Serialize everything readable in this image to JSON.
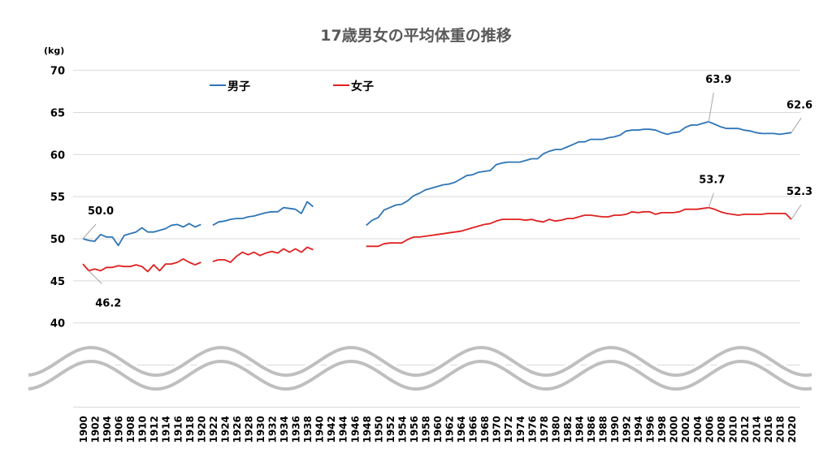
{
  "chart_data": {
    "type": "line",
    "title": "17歳男女の平均体重の推移",
    "ylabel": "(kg)",
    "ylim": [
      40,
      70
    ],
    "yticks": [
      40,
      45,
      50,
      55,
      60,
      65,
      70
    ],
    "xlim": [
      1900,
      2020
    ],
    "xtick_step": 2,
    "axis_break": true,
    "grid": true,
    "legend_position": "top-left",
    "series": [
      {
        "name": "男子",
        "color": "#2E75B6",
        "segments": [
          {
            "start": 1900,
            "values": [
              50.0,
              49.8,
              49.7,
              50.5,
              50.2,
              50.2,
              49.2,
              50.4,
              50.6,
              50.8,
              51.3,
              50.8,
              50.8,
              51.0,
              51.2,
              51.6,
              51.7,
              51.4,
              51.8,
              51.4,
              51.7
            ]
          },
          {
            "start": 1922,
            "values": [
              51.6,
              52.0,
              52.1,
              52.3,
              52.4,
              52.4,
              52.6,
              52.7,
              52.9,
              53.1,
              53.2,
              53.2,
              53.7,
              53.6,
              53.5,
              53.0,
              54.4,
              53.8
            ]
          },
          {
            "start": 1948,
            "values": [
              51.6,
              52.2,
              52.5,
              53.4,
              53.7,
              54.0,
              54.1,
              54.5,
              55.1,
              55.4,
              55.8,
              56.0,
              56.2,
              56.4,
              56.5,
              56.7,
              57.1,
              57.5,
              57.6,
              57.9,
              58.0,
              58.1,
              58.8,
              59.0,
              59.1,
              59.1,
              59.1,
              59.3,
              59.5,
              59.5,
              60.1,
              60.4,
              60.6,
              60.6,
              60.9,
              61.2,
              61.5,
              61.5,
              61.8,
              61.8,
              61.8,
              62.0,
              62.1,
              62.3,
              62.8,
              62.9,
              62.9,
              63.0,
              63.0,
              62.9,
              62.6,
              62.4,
              62.6,
              62.7,
              63.2,
              63.5,
              63.5,
              63.7,
              63.9,
              63.6,
              63.3,
              63.1,
              63.1,
              63.1,
              62.9,
              62.8,
              62.6,
              62.5,
              62.5,
              62.5,
              62.4,
              62.5,
              62.6
            ]
          }
        ]
      },
      {
        "name": "女子",
        "color": "#E02020",
        "segments": [
          {
            "start": 1900,
            "values": [
              47.0,
              46.2,
              46.4,
              46.2,
              46.6,
              46.6,
              46.8,
              46.7,
              46.7,
              46.9,
              46.7,
              46.1,
              46.9,
              46.2,
              47.0,
              47.0,
              47.2,
              47.6,
              47.2,
              46.9,
              47.2
            ]
          },
          {
            "start": 1922,
            "values": [
              47.3,
              47.5,
              47.5,
              47.2,
              47.9,
              48.4,
              48.1,
              48.4,
              48.0,
              48.3,
              48.5,
              48.3,
              48.8,
              48.4,
              48.8,
              48.4,
              49.0,
              48.7
            ]
          },
          {
            "start": 1948,
            "values": [
              49.1,
              49.1,
              49.1,
              49.4,
              49.5,
              49.5,
              49.5,
              49.9,
              50.2,
              50.2,
              50.3,
              50.4,
              50.5,
              50.6,
              50.7,
              50.8,
              50.9,
              51.1,
              51.3,
              51.5,
              51.7,
              51.8,
              52.1,
              52.3,
              52.3,
              52.3,
              52.3,
              52.2,
              52.3,
              52.1,
              52.0,
              52.3,
              52.1,
              52.2,
              52.4,
              52.4,
              52.6,
              52.8,
              52.8,
              52.7,
              52.6,
              52.6,
              52.8,
              52.8,
              52.9,
              53.2,
              53.1,
              53.2,
              53.2,
              52.9,
              53.1,
              53.1,
              53.1,
              53.2,
              53.5,
              53.5,
              53.5,
              53.6,
              53.7,
              53.5,
              53.2,
              53.0,
              52.9,
              52.8,
              52.9,
              52.9,
              52.9,
              52.9,
              53.0,
              53.0,
              53.0,
              53.0,
              52.3
            ]
          }
        ]
      }
    ],
    "annotations": [
      {
        "text": "50.0",
        "series": 0,
        "year": 1900,
        "value": 50.0
      },
      {
        "text": "46.2",
        "series": 1,
        "year": 1901,
        "value": 46.2
      },
      {
        "text": "63.9",
        "series": 0,
        "year": 2006,
        "value": 63.9
      },
      {
        "text": "62.6",
        "series": 0,
        "year": 2020,
        "value": 62.6
      },
      {
        "text": "53.7",
        "series": 1,
        "year": 2006,
        "value": 53.7
      },
      {
        "text": "52.3",
        "series": 1,
        "year": 2020,
        "value": 52.3
      }
    ]
  }
}
